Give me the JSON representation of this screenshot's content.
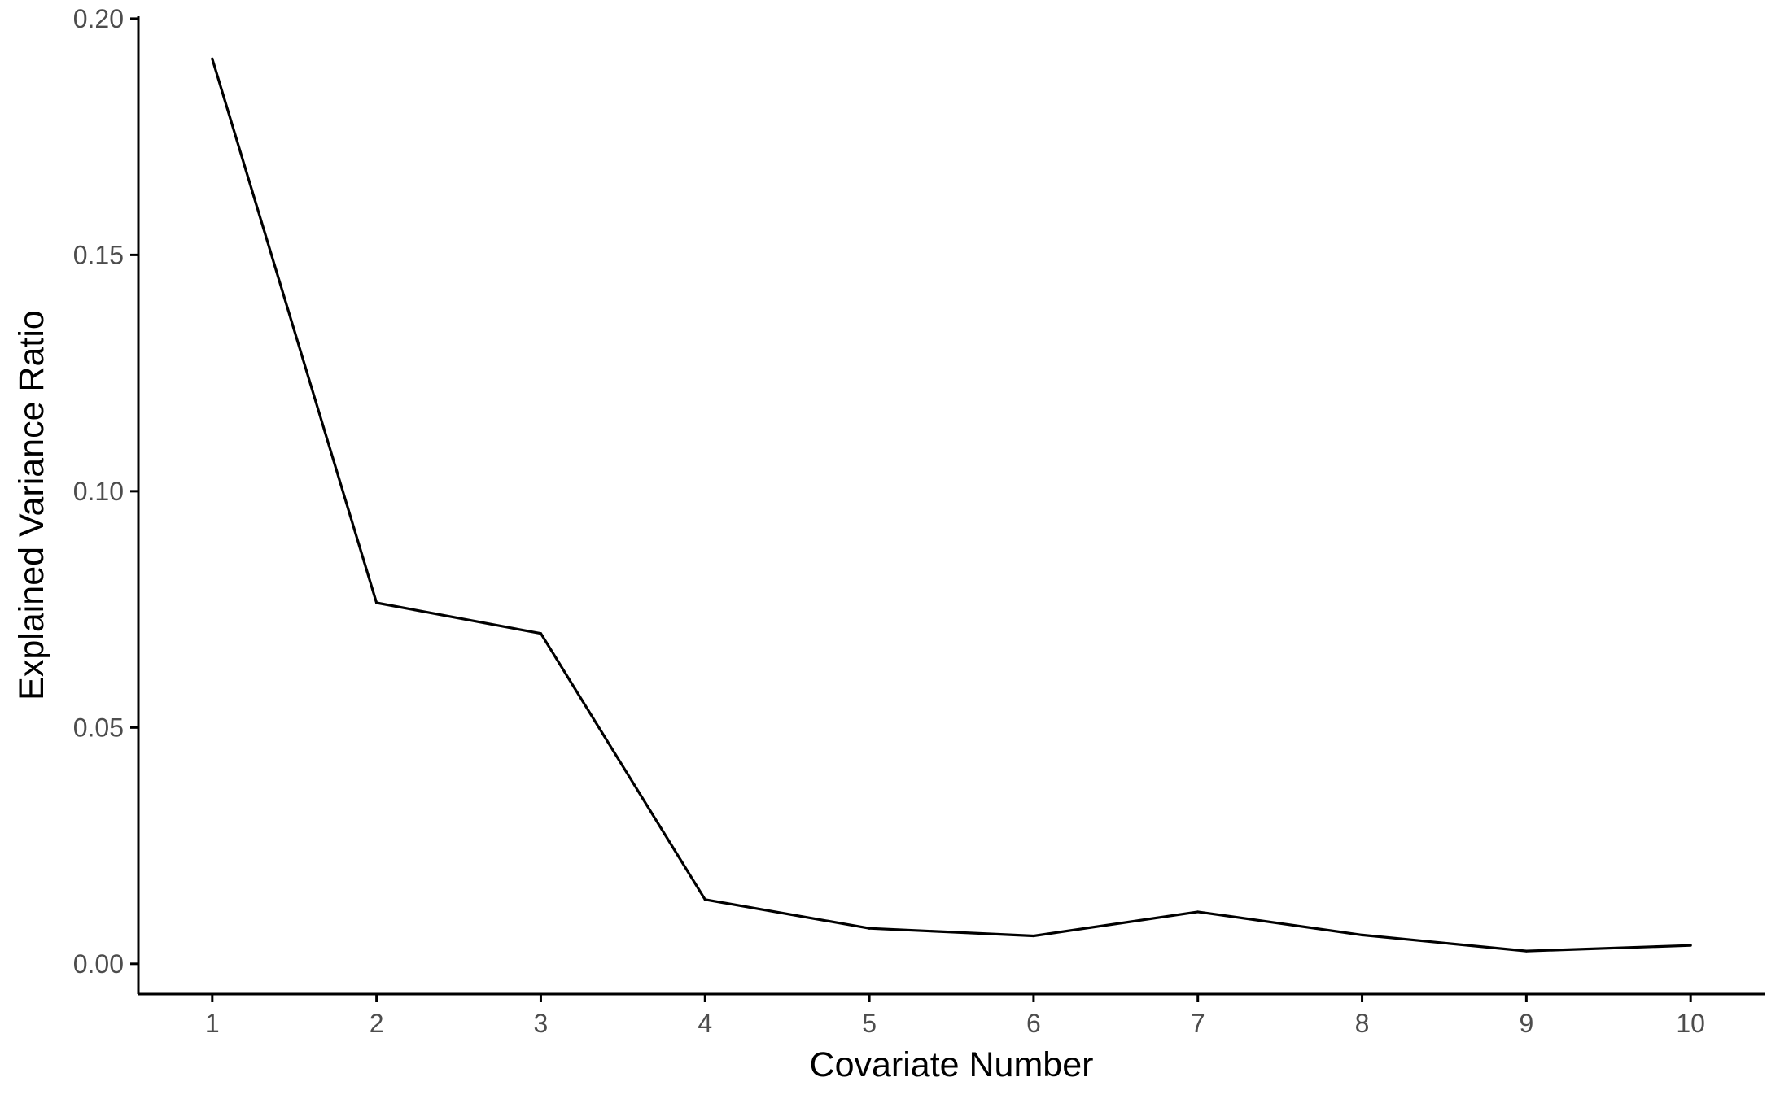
{
  "chart_data": {
    "type": "line",
    "title": "",
    "xlabel": "Covariate Number",
    "ylabel": "Explained Variance Ratio",
    "x": [
      1,
      2,
      3,
      4,
      5,
      6,
      7,
      8,
      9,
      10
    ],
    "series": [
      {
        "values": [
          0.1915,
          0.0764,
          0.0699,
          0.0136,
          0.0075,
          0.0059,
          0.011,
          0.0061,
          0.0027,
          0.0039
        ]
      }
    ],
    "xticks": [
      "1",
      "2",
      "3",
      "4",
      "5",
      "6",
      "7",
      "8",
      "9",
      "10"
    ],
    "yticks": [
      "0.00",
      "0.05",
      "0.10",
      "0.15",
      "0.20"
    ],
    "xlim": [
      0.55,
      10.45
    ],
    "ylim": [
      -0.0064,
      0.2005
    ],
    "grid": false,
    "legend": "none",
    "colors": {
      "line": "#000000",
      "axis": "#000000",
      "tick_label": "#4d4d4d"
    }
  }
}
